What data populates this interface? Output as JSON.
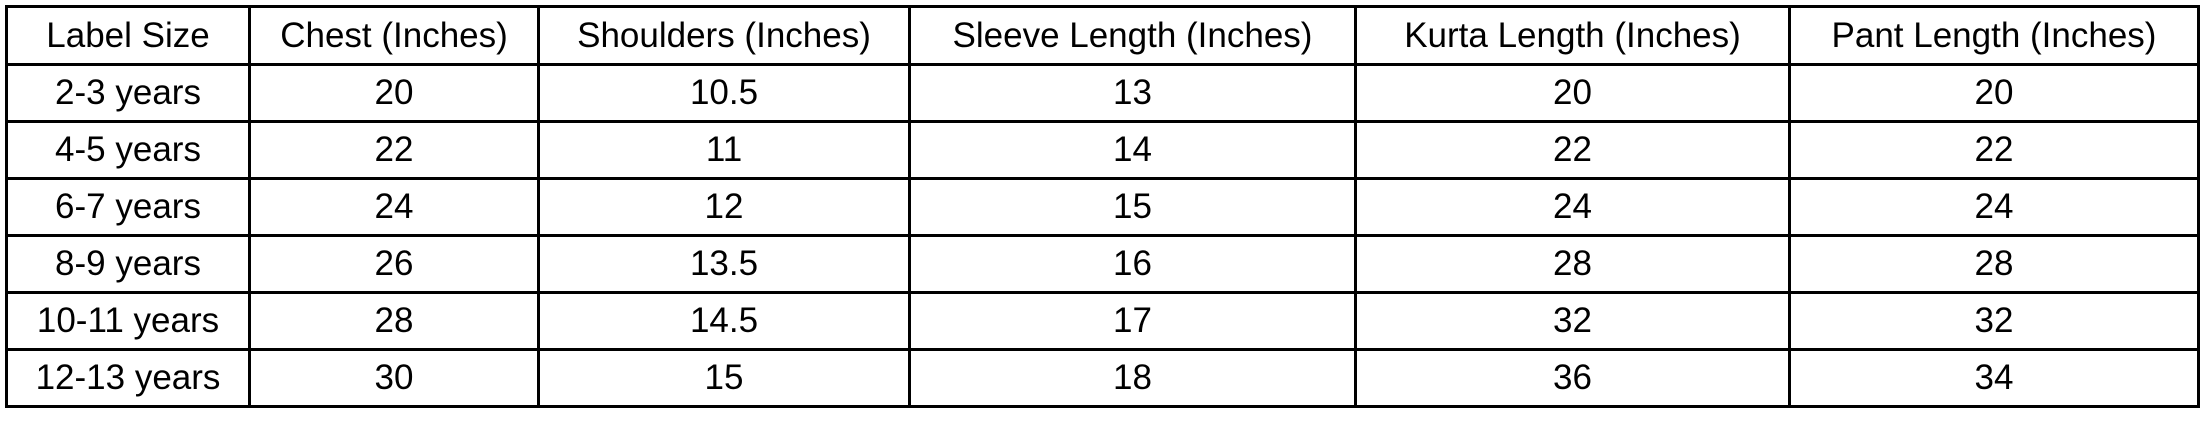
{
  "table": {
    "header": [
      "Label Size",
      "Chest (Inches)",
      "Shoulders (Inches)",
      "Sleeve Length (Inches)",
      "Kurta Length (Inches)",
      "Pant Length (Inches)"
    ],
    "rows": [
      [
        "2-3 years",
        20,
        10.5,
        13,
        20,
        20
      ],
      [
        "4-5 years",
        22,
        11,
        14,
        22,
        22
      ],
      [
        "6-7 years",
        24,
        12,
        15,
        24,
        24
      ],
      [
        "8-9 years",
        26,
        13.5,
        16,
        28,
        28
      ],
      [
        "10-11 years",
        28,
        14.5,
        17,
        32,
        32
      ],
      [
        "12-13 years",
        30,
        15,
        18,
        36,
        34
      ]
    ]
  }
}
